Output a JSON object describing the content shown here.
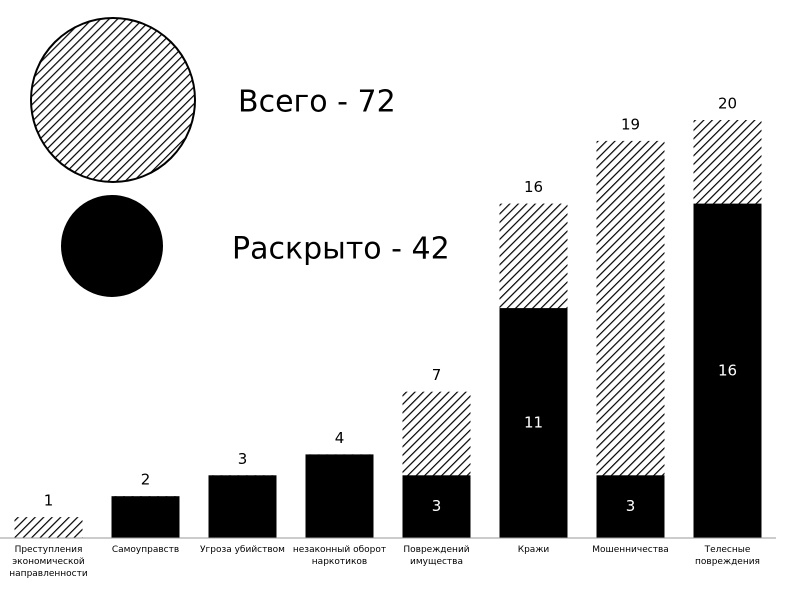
{
  "chart_data": {
    "type": "overlap-bar",
    "categories": [
      "Преступления экономической направленности",
      "Самоуправств",
      "Угроза убийством",
      "незаконный оборот наркотиков",
      "Повреждений имущества",
      "Кражи",
      "Мошенничества",
      "Телесные повреждения"
    ],
    "series": [
      {
        "name": "Всего - 72",
        "color": "#000000",
        "pattern": "hatch",
        "values": [
          1,
          2,
          3,
          4,
          7,
          16,
          19,
          20
        ]
      },
      {
        "name": "Раскрыто - 42",
        "color": "#000000",
        "values": [
          0,
          2,
          3,
          4,
          3,
          11,
          3,
          16
        ]
      }
    ],
    "ylim": [
      0,
      20
    ]
  }
}
